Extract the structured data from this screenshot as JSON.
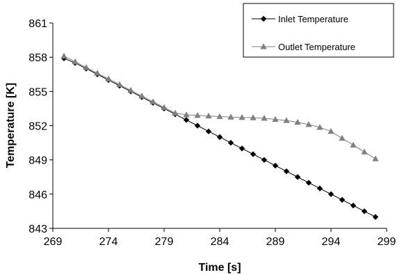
{
  "chart_data": {
    "type": "line",
    "title": "",
    "xlabel": "Time [s]",
    "ylabel": "Temperature [K]",
    "xlim": [
      269,
      299
    ],
    "ylim": [
      843,
      861
    ],
    "xticks": [
      269,
      274,
      279,
      284,
      289,
      294,
      299
    ],
    "yticks": [
      843,
      846,
      849,
      852,
      855,
      858,
      861
    ],
    "grid": false,
    "legend_position": "top-right",
    "series": [
      {
        "name": "Inlet Temperature",
        "color": "#000000",
        "marker": "diamond",
        "x": [
          270,
          271,
          272,
          273,
          274,
          275,
          276,
          277,
          278,
          279,
          280,
          281,
          282,
          283,
          284,
          285,
          286,
          287,
          288,
          289,
          290,
          291,
          292,
          293,
          294,
          295,
          296,
          297,
          298
        ],
        "y": [
          857.9,
          857.5,
          857.0,
          856.5,
          856.0,
          855.5,
          855.0,
          854.5,
          854.0,
          853.5,
          853.0,
          852.5,
          852.0,
          851.5,
          851.0,
          850.5,
          850.0,
          849.5,
          849.0,
          848.5,
          848.0,
          847.5,
          847.0,
          846.5,
          846.0,
          845.5,
          845.0,
          844.5,
          844.0
        ]
      },
      {
        "name": "Outlet Temperature",
        "color": "#808080",
        "marker": "triangle",
        "x": [
          270,
          271,
          272,
          273,
          274,
          275,
          276,
          277,
          278,
          279,
          280,
          281,
          282,
          283,
          284,
          285,
          286,
          287,
          288,
          289,
          290,
          291,
          292,
          293,
          294,
          295,
          296,
          297,
          298
        ],
        "y": [
          858.1,
          857.6,
          857.1,
          856.6,
          856.1,
          855.6,
          855.1,
          854.6,
          854.1,
          853.6,
          853.1,
          852.95,
          852.9,
          852.85,
          852.8,
          852.75,
          852.72,
          852.7,
          852.65,
          852.55,
          852.45,
          852.3,
          852.1,
          851.85,
          851.5,
          850.9,
          850.3,
          849.7,
          849.1
        ]
      }
    ]
  }
}
